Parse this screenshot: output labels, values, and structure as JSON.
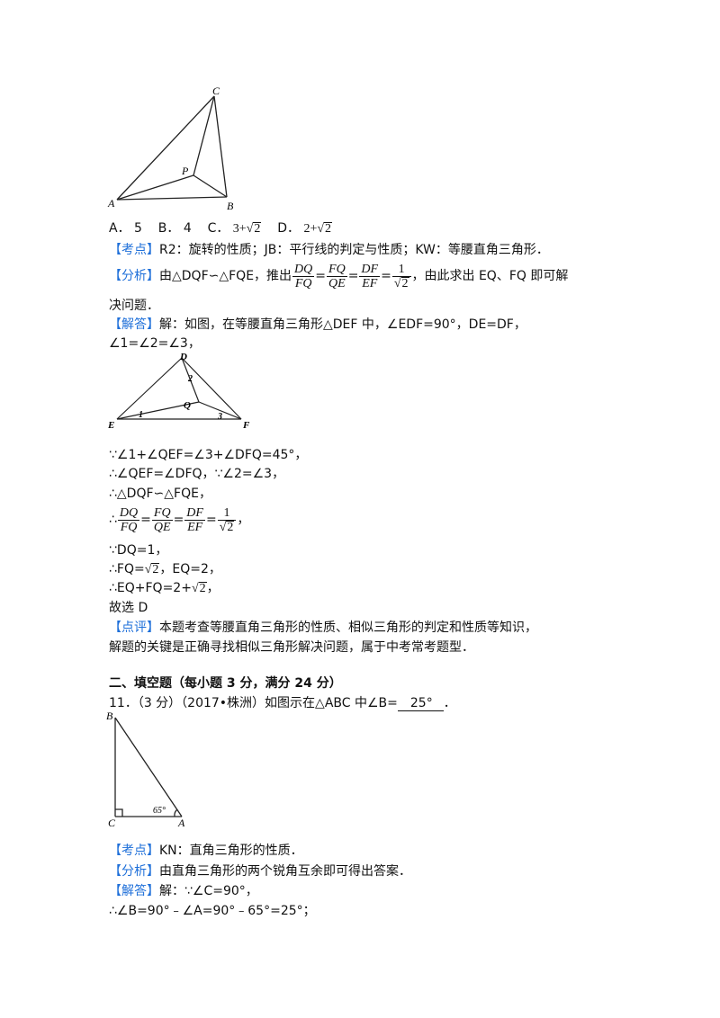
{
  "fig1": {
    "labels": {
      "A": "A",
      "B": "B",
      "C": "C",
      "P": "P"
    }
  },
  "options": {
    "a_letter": "A．",
    "a_val": "5",
    "b_letter": "B．",
    "b_val": "4",
    "c_letter": "C．",
    "c_int": "3",
    "c_plus": "+",
    "c_rad": "2",
    "d_letter": "D．",
    "d_int": "2",
    "d_plus": "+",
    "d_rad": "2"
  },
  "q10": {
    "kaodian_tag": "【考点】",
    "kaodian_text": "R2：旋转的性质；JB：平行线的判定与性质；KW：等腰直角三角形．",
    "fenxi_tag": "【分析】",
    "fenxi_pre": "由△DQF∽△FQE，推出",
    "fenxi_post": "，由此求出 EQ、FQ 即可解",
    "fenxi_line2": "决问题．",
    "jieda_tag": "【解答】",
    "jieda_line1": "解：如图，在等腰直角三角形△DEF 中，∠EDF=90°，DE=DF，",
    "jieda_line2": "∠1=∠2=∠3，",
    "fig2": {
      "D": "D",
      "E": "E",
      "F": "F",
      "Q": "Q",
      "n1": "1",
      "n2": "2",
      "n3": "3"
    },
    "frac1": {
      "n": "DQ",
      "d": "FQ"
    },
    "frac2": {
      "n": "FQ",
      "d": "QE"
    },
    "frac3": {
      "n": "DF",
      "d": "EF"
    },
    "frac4": {
      "n": "1",
      "d": "2"
    },
    "eq": "=",
    "step1": "∵∠1+∠QEF=∠3+∠DFQ=45°，",
    "step2": "∴∠QEF=∠DFQ，∵∠2=∠3，",
    "step3": "∴△DQF∽△FQE，",
    "step4_pre": "∴",
    "step4_post": "，",
    "step5": "∵DQ=1，",
    "step6_pre": "∴FQ=",
    "step6_rad": "2",
    "step6_post": "，EQ=2，",
    "step7_pre": "∴EQ+FQ=2+",
    "step7_rad": "2",
    "step7_post": "，",
    "choice": "故选 D",
    "dianping_tag": "【点评】",
    "dianping_line1": "本题考查等腰直角三角形的性质、相似三角形的判定和性质等知识，",
    "dianping_line2": "解题的关键是正确寻找相似三角形解决问题，属于中考常考题型．"
  },
  "section_title": "二、填空题（每小题 3 分，满分 24 分）",
  "q11": {
    "stem_pre": "11．（3 分）（2017•株洲）如图示在△ABC 中∠B=",
    "answer": "25°",
    "stem_post": "．",
    "fig": {
      "B": "B",
      "C": "C",
      "A": "A",
      "angle": "65°"
    },
    "kaodian_tag": "【考点】",
    "kaodian_text": "KN：直角三角形的性质．",
    "fenxi_tag": "【分析】",
    "fenxi_text": "由直角三角形的两个锐角互余即可得出答案．",
    "jieda_tag": "【解答】",
    "jieda_text": "解：∵∠C=90°，",
    "step": "∴∠B=90°﹣∠A=90°﹣65°=25°；"
  }
}
